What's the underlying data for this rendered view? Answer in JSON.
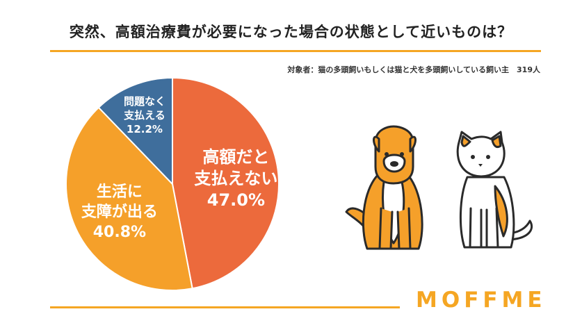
{
  "title": "突然、高額治療費が必要になった場合の状態として近いものは？",
  "subtitle": "対象者：猫の多頭飼いもしくは猫と犬を多頭飼いしている飼い主　319人",
  "logo": "MOFFME",
  "colors": {
    "accent": "#f5a623",
    "slice_high": "#ec6a3c",
    "slice_life": "#f5a02a",
    "slice_ok": "#3f6e9c"
  },
  "illustrations": [
    "dog-illustration",
    "cat-illustration"
  ],
  "chart_data": {
    "type": "pie",
    "total_respondents": 319,
    "slices": [
      {
        "lines": [
          "高額だと",
          "支払えない"
        ],
        "value": 47.0,
        "value_label": "47.0%",
        "color": "#ec6a3c"
      },
      {
        "lines": [
          "生活に",
          "支障が出る"
        ],
        "value": 40.8,
        "value_label": "40.8%",
        "color": "#f5a02a"
      },
      {
        "lines": [
          "問題なく",
          "支払える"
        ],
        "value": 12.2,
        "value_label": "12.2%",
        "color": "#3f6e9c"
      }
    ]
  }
}
